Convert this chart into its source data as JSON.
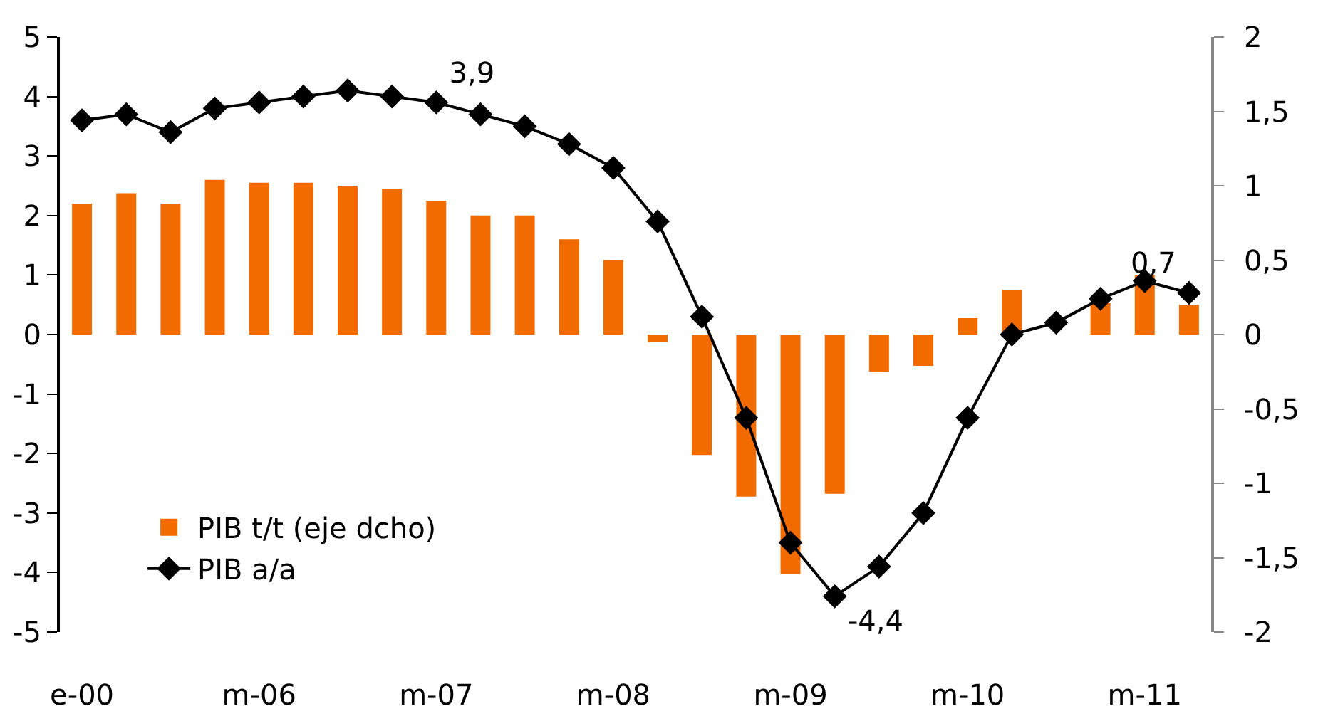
{
  "chart_data": {
    "type": "bar",
    "categories": [
      "e-00",
      null,
      null,
      null,
      "m-06",
      null,
      null,
      null,
      "m-07",
      null,
      null,
      null,
      "m-08",
      null,
      null,
      null,
      "m-09",
      null,
      null,
      null,
      "m-10",
      null,
      null,
      null,
      "m-11",
      null
    ],
    "series": [
      {
        "name": "PIB t/t (eje dcho)",
        "axis": "y2",
        "color": "#f26b00",
        "values": [
          0.88,
          0.95,
          0.88,
          1.04,
          1.02,
          1.02,
          1.0,
          0.98,
          0.9,
          0.8,
          0.8,
          0.64,
          0.5,
          -0.05,
          -0.81,
          -1.09,
          -1.61,
          -1.07,
          -0.25,
          -0.21,
          0.11,
          0.3,
          null,
          0.21,
          0.4,
          0.2
        ]
      },
      {
        "name": "PIB a/a",
        "type": "line",
        "color": "#000000",
        "values": [
          3.6,
          3.7,
          3.4,
          3.8,
          3.9,
          4.0,
          4.1,
          4.0,
          3.9,
          3.7,
          3.5,
          3.2,
          2.8,
          1.9,
          0.3,
          -1.4,
          -3.5,
          -4.4,
          -3.9,
          -3.0,
          -1.4,
          0.0,
          0.2,
          0.6,
          0.9,
          0.7
        ],
        "value_labels": [
          null,
          null,
          null,
          null,
          null,
          null,
          null,
          null,
          "3,9",
          null,
          null,
          null,
          null,
          null,
          null,
          null,
          null,
          "-4,4",
          null,
          null,
          null,
          null,
          null,
          null,
          null,
          "0,7"
        ]
      }
    ],
    "ylim": [
      -5,
      5
    ],
    "yticks": [
      -5,
      -4,
      -3,
      -2,
      -1,
      0,
      1,
      2,
      3,
      4,
      5
    ],
    "y2lim": [
      -2,
      2
    ],
    "y2ticks": [
      {
        "value": -2,
        "label": "-2"
      },
      {
        "value": -1.5,
        "label": "-1,5"
      },
      {
        "value": -1,
        "label": "-1"
      },
      {
        "value": -0.5,
        "label": "-0,5"
      },
      {
        "value": 0,
        "label": "0"
      },
      {
        "value": 0.5,
        "label": "0,5"
      },
      {
        "value": 1,
        "label": "1"
      },
      {
        "value": 1.5,
        "label": "1,5"
      },
      {
        "value": 2,
        "label": "2"
      }
    ],
    "grid": false,
    "legend": "bottom left",
    "marker": "diamond"
  }
}
